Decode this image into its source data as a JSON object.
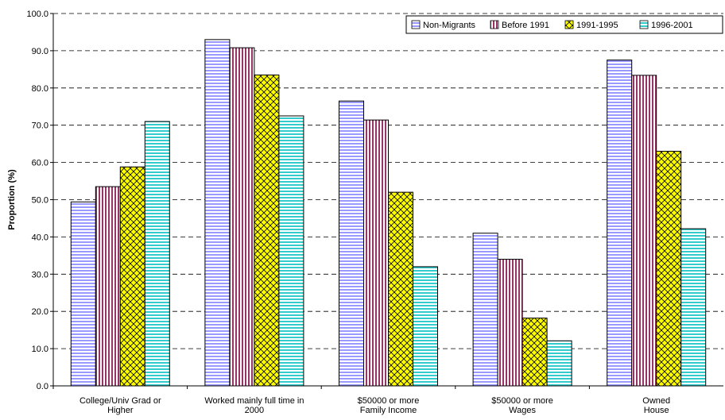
{
  "chart_data": {
    "type": "bar",
    "title": "",
    "xlabel": "",
    "ylabel": "Proportion (%)",
    "ylim": [
      0,
      100
    ],
    "yticks": [
      "0.0",
      "10.0",
      "20.0",
      "30.0",
      "40.0",
      "50.0",
      "60.0",
      "70.0",
      "80.0",
      "90.0",
      "100.0"
    ],
    "grid": true,
    "legend_position": "top-right",
    "categories": [
      [
        "College/Univ Grad or",
        "Higher"
      ],
      [
        "Worked mainly full time in",
        "2000"
      ],
      [
        "$50000 or more",
        "Family Income"
      ],
      [
        "$50000 or more",
        "Wages"
      ],
      [
        "Owned",
        "House"
      ]
    ],
    "series": [
      {
        "name": "Non-Migrants",
        "pattern": "horizontal-lines",
        "color": "#9999ff",
        "values": [
          49.4,
          93.0,
          76.5,
          41.0,
          87.5
        ]
      },
      {
        "name": "Before 1991",
        "pattern": "vertical-lines",
        "color": "#993366",
        "values": [
          53.5,
          90.8,
          71.4,
          34.0,
          83.4
        ]
      },
      {
        "name": "1991-1995",
        "pattern": "crosshatch",
        "color": "#ffff00",
        "values": [
          58.8,
          83.5,
          52.0,
          18.2,
          63.0
        ]
      },
      {
        "name": "1996-2001",
        "pattern": "horizontal-lines",
        "color": "#33cccc",
        "values": [
          71.0,
          72.5,
          32.0,
          12.1,
          42.2
        ]
      }
    ]
  }
}
